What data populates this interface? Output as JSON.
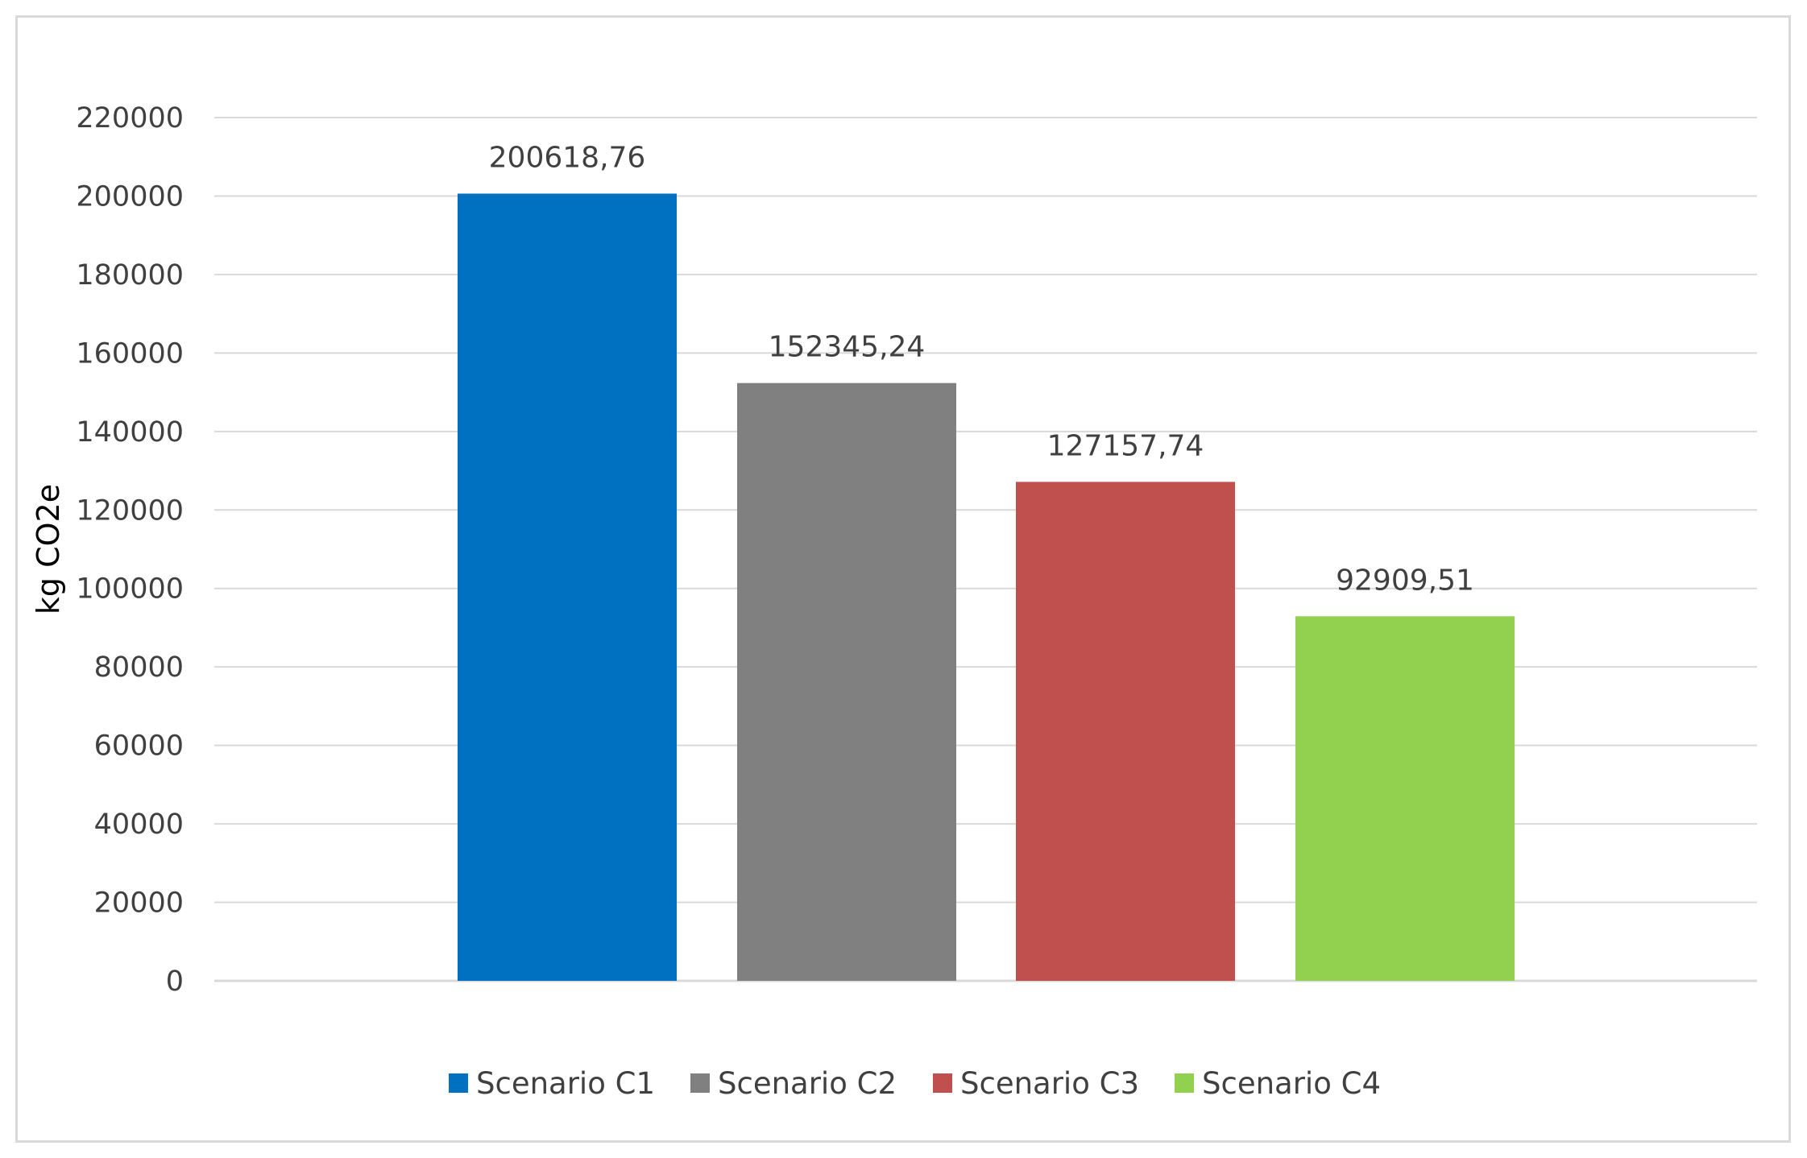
{
  "chart_data": {
    "type": "bar",
    "title": "",
    "xlabel": "",
    "ylabel": "kg CO2e",
    "ylim": [
      0,
      220000
    ],
    "y_ticks": [
      0,
      20000,
      40000,
      60000,
      80000,
      100000,
      120000,
      140000,
      160000,
      180000,
      200000,
      220000
    ],
    "y_tick_labels": [
      "0",
      "20000",
      "40000",
      "60000",
      "80000",
      "100000",
      "120000",
      "140000",
      "160000",
      "180000",
      "200000",
      "220000"
    ],
    "grid": true,
    "legend_position": "bottom",
    "series": [
      {
        "name": "Scenario C1",
        "value": 200618.76,
        "label": "200618,76",
        "color": "#0070c0"
      },
      {
        "name": "Scenario C2",
        "value": 152345.24,
        "label": "152345,24",
        "color": "#808080"
      },
      {
        "name": "Scenario C3",
        "value": 127157.74,
        "label": "127157,74",
        "color": "#c0504d"
      },
      {
        "name": "Scenario C4",
        "value": 92909.51,
        "label": "92909,51",
        "color": "#92d050"
      }
    ]
  }
}
